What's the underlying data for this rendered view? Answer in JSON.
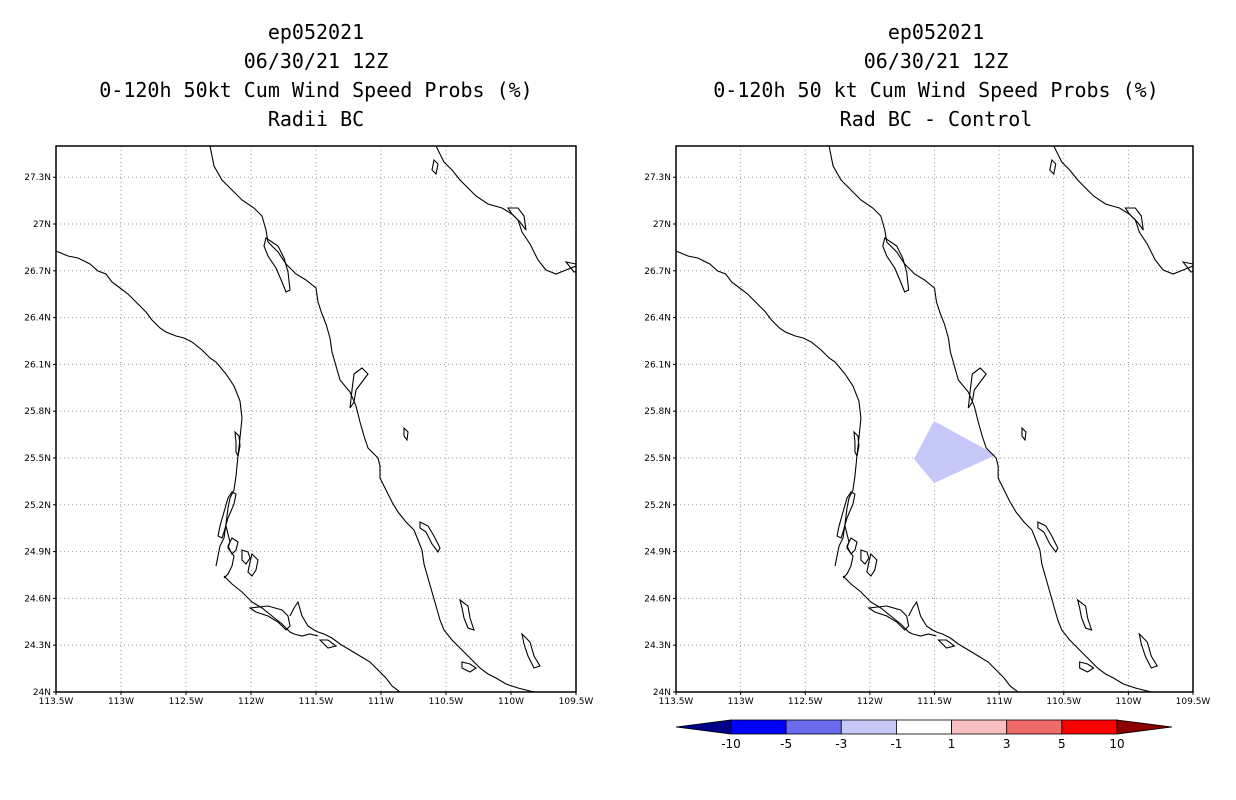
{
  "colors": {
    "background": "#ffffff",
    "coast": "#000000",
    "grid": "#9a9a9a",
    "shading": "#c6c8f8"
  },
  "panels": [
    {
      "storm_id": "ep052021",
      "datetime": "06/30/21 12Z",
      "title": "0-120h 50kt Cum Wind Speed Probs (%)",
      "subtitle": "Radii BC"
    },
    {
      "storm_id": "ep052021",
      "datetime": "06/30/21 12Z",
      "title": "0-120h 50 kt Cum Wind Speed Probs (%)",
      "subtitle": "Rad BC - Control",
      "shaded_area": {
        "value_class": "-3 to -1",
        "color": "#c6c8f8"
      }
    }
  ],
  "axes": {
    "lon_labels": [
      "113.5W",
      "113W",
      "112.5W",
      "112W",
      "111.5W",
      "111W",
      "110.5W",
      "110W",
      "109.5W"
    ],
    "lat_labels": [
      "24N",
      "24.3N",
      "24.6N",
      "24.9N",
      "25.2N",
      "25.5N",
      "25.8N",
      "26.1N",
      "26.4N",
      "26.7N",
      "27N",
      "27.3N"
    ],
    "lon_range": [
      -113.5,
      -109.5
    ],
    "lat_range": [
      24.0,
      27.5
    ]
  },
  "colorbar": {
    "labels": [
      "-10",
      "-5",
      "-3",
      "-1",
      "1",
      "3",
      "5",
      "10"
    ],
    "colors": [
      "#00008b",
      "#0000ff",
      "#6b6bf0",
      "#c6c8f8",
      "#ffffff",
      "#f8c0c0",
      "#f06a6a",
      "#ff0000",
      "#8b0000"
    ]
  }
}
